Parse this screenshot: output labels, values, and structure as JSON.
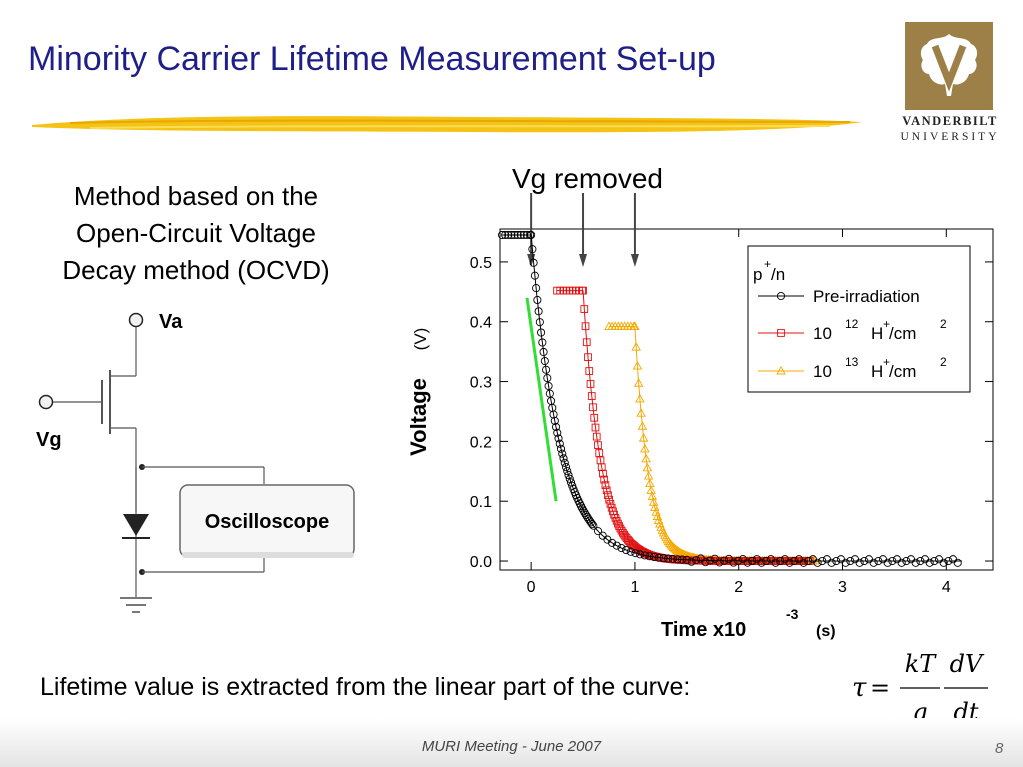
{
  "slide": {
    "title": "Minority Carrier Lifetime Measurement Set-up",
    "footer": "MURI Meeting - June 2007",
    "page_number": "8",
    "logo": {
      "line1": "VANDERBILT",
      "line2": "UNIVERSITY",
      "mark": "V",
      "color": "#9c8047"
    },
    "method_lines": [
      "Method based on the",
      "Open-Circuit Voltage",
      "Decay method (OCVD)"
    ],
    "lifetime_text": "Lifetime value is extracted from the linear part of the curve:",
    "formula": {
      "lhs": "τ",
      "eq": "=",
      "num1": "kT",
      "den1": "q",
      "num2": "dV",
      "den2": "dt"
    }
  },
  "circuit": {
    "va_label": "Va",
    "vg_label": "Vg",
    "oscilloscope_label": "Oscilloscope"
  },
  "chart_data": {
    "type": "scatter",
    "annotation": "Vg removed",
    "annotation_arrows_x": [
      0,
      0.5,
      1.0
    ],
    "xlabel": "Time x10",
    "xlabel_exp": "-3",
    "xlabel_unit": "(s)",
    "ylabel": "Voltage",
    "ylabel_unit": "(V)",
    "xlim": [
      -0.3,
      4.45
    ],
    "ylim": [
      -0.015,
      0.555
    ],
    "xticks": [
      "0",
      "1",
      "2",
      "3",
      "4"
    ],
    "yticks": [
      "0.0",
      "0.1",
      "0.2",
      "0.3",
      "0.4",
      "0.5"
    ],
    "legend": {
      "title": "p",
      "title_sup": "+",
      "title_suffix": "/n",
      "placement": "top-right"
    },
    "series": [
      {
        "name": "Pre-irradiation",
        "marker": "circle",
        "color": "#000000",
        "v0": 0.545,
        "x_start": 0.0,
        "tau": 0.27,
        "plateau_x": [
          -0.28,
          -0.02
        ],
        "x_end": 4.15
      },
      {
        "name": "10 12 H+/cm 2",
        "legend_num": "10",
        "legend_exp": "12",
        "legend_unit": "H",
        "legend_unit_sup": "+",
        "legend_unit_tail": "/cm",
        "legend_unit_exp": "2",
        "marker": "square",
        "color": "#e01010",
        "v0": 0.452,
        "x_start": 0.5,
        "tau": 0.17,
        "plateau_x": [
          0.25,
          0.5
        ],
        "x_end": 2.7
      },
      {
        "name": "10 13 H+/cm 2",
        "legend_num": "10",
        "legend_exp": "13",
        "legend_unit": "H",
        "legend_unit_sup": "+",
        "legend_unit_tail": "/cm",
        "legend_unit_exp": "2",
        "marker": "triangle",
        "color": "#f5a800",
        "v0": 0.392,
        "x_start": 1.0,
        "tau": 0.13,
        "plateau_x": [
          0.75,
          1.0
        ],
        "x_end": 2.75
      }
    ],
    "fit_line": {
      "x": [
        -0.04,
        0.24
      ],
      "y": [
        0.44,
        0.1
      ],
      "color": "#33dd33"
    }
  }
}
